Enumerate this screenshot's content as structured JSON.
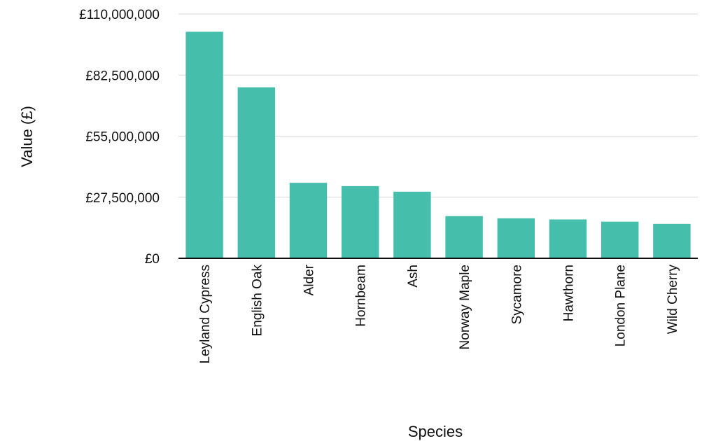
{
  "chart_data": {
    "type": "bar",
    "xlabel": "Species",
    "ylabel": "Value (£)",
    "categories": [
      "Leyland Cypress",
      "English Oak",
      "Alder",
      "Hornbeam",
      "Ash",
      "Norway Maple",
      "Sycamore",
      "Hawthorn",
      "London Plane",
      "Wild Cherry"
    ],
    "values": [
      102000000,
      77000000,
      34000000,
      32500000,
      30000000,
      19000000,
      18000000,
      17500000,
      16500000,
      15500000
    ],
    "ylim": [
      0,
      110000000
    ],
    "yticks": [
      0,
      27500000,
      55000000,
      82500000,
      110000000
    ],
    "ytick_labels": [
      "£0",
      "£27,500,000",
      "£55,000,000",
      "£82,500,000",
      "£110,000,000"
    ],
    "bar_color": "#45bfac",
    "grid": true,
    "legend": "none"
  }
}
